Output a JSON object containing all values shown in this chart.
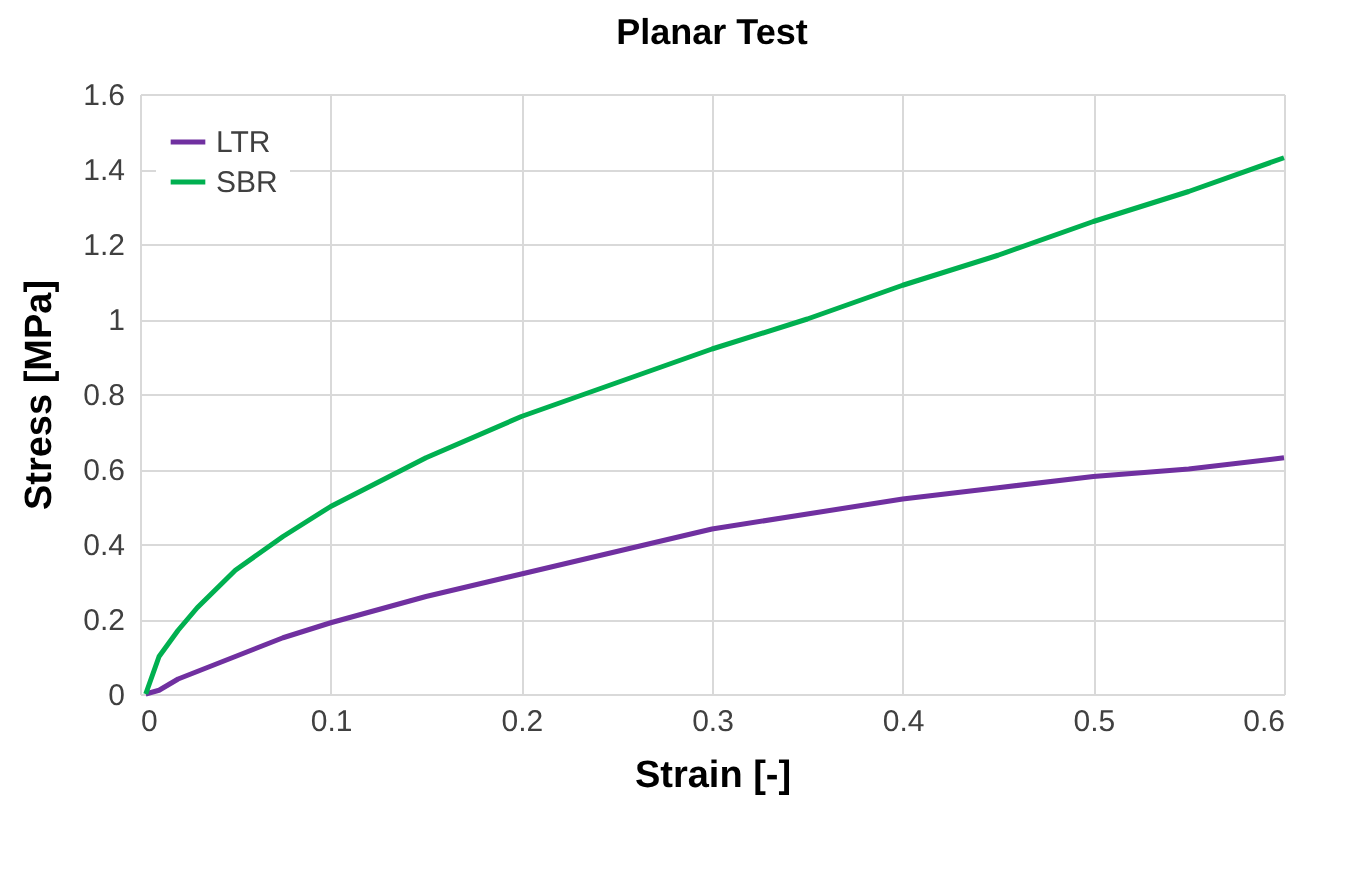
{
  "chart_data": {
    "type": "line",
    "title": "Planar Test",
    "xlabel": "Strain [-]",
    "ylabel": "Stress [MPa]",
    "x": [
      0.003,
      0.01,
      0.02,
      0.03,
      0.05,
      0.075,
      0.1,
      0.15,
      0.2,
      0.25,
      0.3,
      0.35,
      0.4,
      0.45,
      0.5,
      0.55,
      0.6
    ],
    "series": [
      {
        "name": "LTR",
        "color": "#7030a0",
        "values": [
          0,
          0.01,
          0.04,
          0.06,
          0.1,
          0.15,
          0.19,
          0.26,
          0.32,
          0.38,
          0.44,
          0.48,
          0.52,
          0.55,
          0.58,
          0.6,
          0.63
        ]
      },
      {
        "name": "SBR",
        "color": "#00b050",
        "values": [
          0,
          0.1,
          0.17,
          0.23,
          0.33,
          0.42,
          0.5,
          0.63,
          0.74,
          0.83,
          0.92,
          1.0,
          1.09,
          1.17,
          1.26,
          1.34,
          1.43
        ]
      }
    ],
    "xlim": [
      0,
      0.6
    ],
    "xticks": [
      0,
      0.1,
      0.2,
      0.3,
      0.4,
      0.5,
      0.6
    ],
    "ylim": [
      0,
      1.6
    ],
    "yticks": [
      0,
      0.2,
      0.4,
      0.6,
      0.8,
      1,
      1.2,
      1.4,
      1.6
    ],
    "grid": true,
    "legend": "top left",
    "line_style": "solid"
  }
}
